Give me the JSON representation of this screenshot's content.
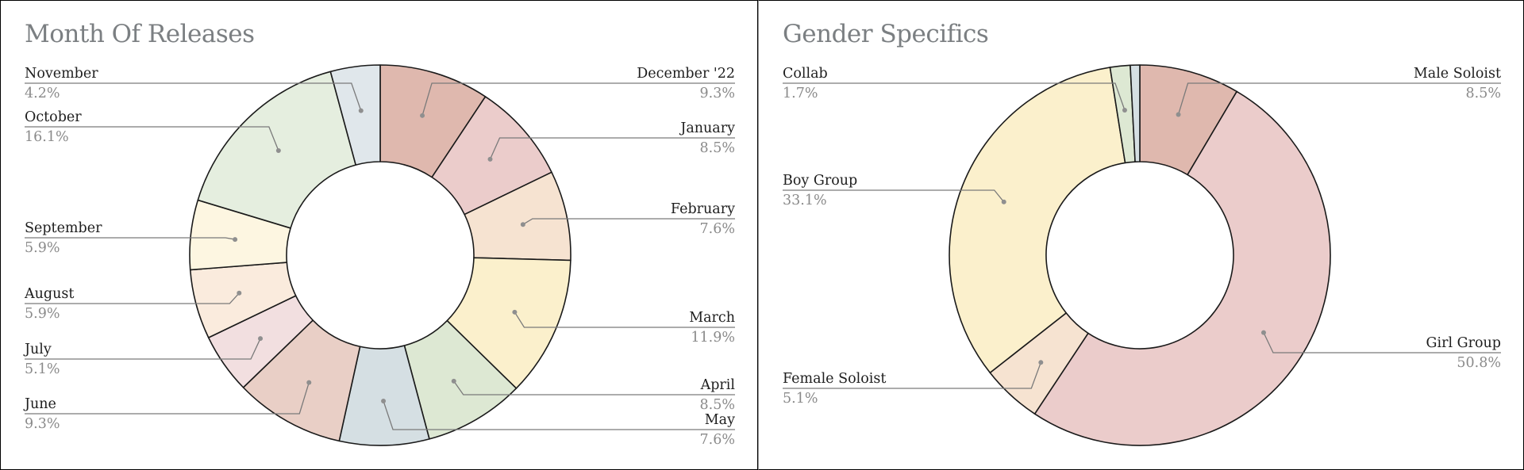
{
  "chart_data": [
    {
      "type": "pie",
      "donut": true,
      "title": "Month Of Releases",
      "slices": [
        {
          "label": "December '22",
          "value": 9.3,
          "display": "9.3%",
          "color": "#dfb8ae",
          "side": "right"
        },
        {
          "label": "January",
          "value": 8.5,
          "display": "8.5%",
          "color": "#ebcccb",
          "side": "right"
        },
        {
          "label": "February",
          "value": 7.6,
          "display": "7.6%",
          "color": "#f6e3d1",
          "side": "right"
        },
        {
          "label": "March",
          "value": 11.9,
          "display": "11.9%",
          "color": "#fbf0cc",
          "side": "right"
        },
        {
          "label": "April",
          "value": 8.5,
          "display": "8.5%",
          "color": "#dde8d3",
          "side": "right"
        },
        {
          "label": "May",
          "value": 7.6,
          "display": "7.6%",
          "color": "#d5dfe3",
          "side": "right"
        },
        {
          "label": "June",
          "value": 9.3,
          "display": "9.3%",
          "color": "#e9cfc6",
          "side": "left"
        },
        {
          "label": "July",
          "value": 5.1,
          "display": "5.1%",
          "color": "#f2dfe0",
          "side": "left"
        },
        {
          "label": "August",
          "value": 5.9,
          "display": "5.9%",
          "color": "#faebdd",
          "side": "left"
        },
        {
          "label": "September",
          "value": 5.9,
          "display": "5.9%",
          "color": "#fdf6e1",
          "side": "left"
        },
        {
          "label": "October",
          "value": 16.1,
          "display": "16.1%",
          "color": "#e5eedf",
          "side": "left"
        },
        {
          "label": "November",
          "value": 4.2,
          "display": "4.2%",
          "color": "#e0e7eb",
          "side": "left"
        }
      ]
    },
    {
      "type": "pie",
      "donut": true,
      "title": "Gender Specifics",
      "slices": [
        {
          "label": "Male Soloist",
          "value": 8.5,
          "display": "8.5%",
          "color": "#dfb8ae",
          "side": "right"
        },
        {
          "label": "Girl Group",
          "value": 50.8,
          "display": "50.8%",
          "color": "#ebcccb",
          "side": "right"
        },
        {
          "label": "Female Soloist",
          "value": 5.1,
          "display": "5.1%",
          "color": "#f6e3d1",
          "side": "left"
        },
        {
          "label": "Boy Group",
          "value": 33.1,
          "display": "33.1%",
          "color": "#fbf0cc",
          "side": "left"
        },
        {
          "label": "Collab",
          "value": 1.7,
          "display": "1.7%",
          "color": "#dde8d3",
          "side": "left"
        },
        {
          "label": "",
          "value": 0.8,
          "display": "",
          "color": "#d5dfe3",
          "side": "none"
        }
      ]
    }
  ]
}
